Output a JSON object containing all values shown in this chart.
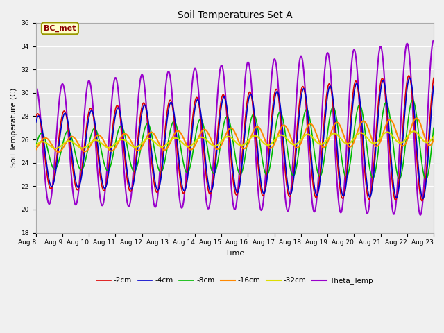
{
  "title": "Soil Temperatures Set A",
  "xlabel": "Time",
  "ylabel": "Soil Temperature (C)",
  "ylim": [
    18,
    36
  ],
  "yticks": [
    18,
    20,
    22,
    24,
    26,
    28,
    30,
    32,
    34,
    36
  ],
  "annotation": "BC_met",
  "bg_color": "#e8e8e8",
  "series": {
    "-2cm": {
      "color": "#dd0000",
      "linewidth": 1.2
    },
    "-4cm": {
      "color": "#0000cc",
      "linewidth": 1.2
    },
    "-8cm": {
      "color": "#00bb00",
      "linewidth": 1.2
    },
    "-16cm": {
      "color": "#ff8800",
      "linewidth": 1.5
    },
    "-32cm": {
      "color": "#dddd00",
      "linewidth": 1.5
    },
    "Theta_Temp": {
      "color": "#9900cc",
      "linewidth": 1.5
    }
  },
  "xticklabels": [
    "Aug 8",
    "Aug 9",
    "Aug 10",
    "Aug 11",
    "Aug 12",
    "Aug 13",
    "Aug 14",
    "Aug 15",
    "Aug 16",
    "Aug 17",
    "Aug 18",
    "Aug 19",
    "Aug 20",
    "Aug 21",
    "Aug 22",
    "Aug 23"
  ],
  "start_day": 0,
  "end_day": 15
}
